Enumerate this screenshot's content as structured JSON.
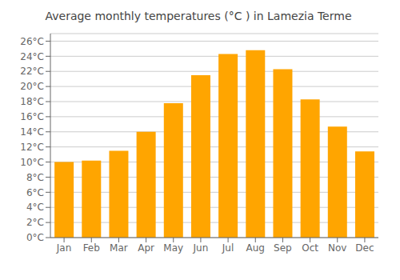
{
  "chart_data": {
    "type": "bar",
    "title": "Average monthly temperatures (°C ) in Lamezia Terme",
    "categories": [
      "Jan",
      "Feb",
      "Mar",
      "Apr",
      "May",
      "Jun",
      "Jul",
      "Aug",
      "Sep",
      "Oct",
      "Nov",
      "Dec"
    ],
    "values": [
      10.0,
      10.2,
      11.5,
      14.0,
      17.8,
      21.5,
      24.3,
      24.8,
      22.3,
      18.3,
      14.7,
      11.4
    ],
    "color": "#FFA500",
    "ylim": [
      0,
      27
    ],
    "yticks": [
      {
        "value": 0,
        "label": "0°C"
      },
      {
        "value": 2,
        "label": "2°C"
      },
      {
        "value": 4,
        "label": "4°C"
      },
      {
        "value": 6,
        "label": "6°C"
      },
      {
        "value": 8,
        "label": "8°C"
      },
      {
        "value": 10,
        "label": "10°C"
      },
      {
        "value": 12,
        "label": "12°C"
      },
      {
        "value": 14,
        "label": "14°C"
      },
      {
        "value": 16,
        "label": "16°C"
      },
      {
        "value": 18,
        "label": "18°C"
      },
      {
        "value": 20,
        "label": "20°C"
      },
      {
        "value": 22,
        "label": "22°C"
      },
      {
        "value": 24,
        "label": "24°C"
      },
      {
        "value": 26,
        "label": "26°C"
      }
    ],
    "grid": true
  }
}
